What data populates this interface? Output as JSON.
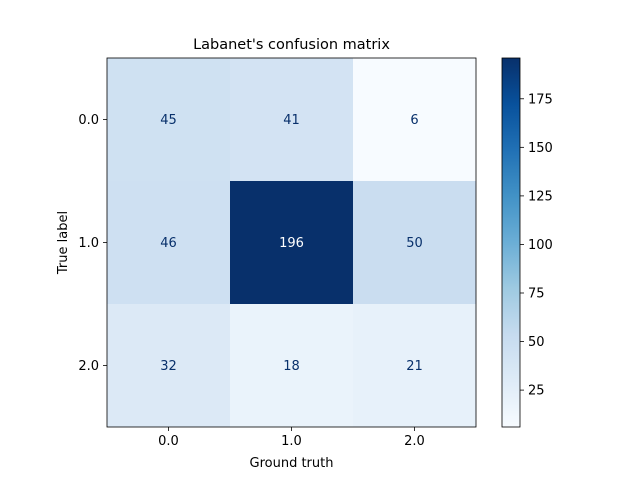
{
  "chart_data": {
    "type": "heatmap",
    "title": "Labanet's confusion matrix",
    "xlabel": "Ground truth",
    "ylabel": "True label",
    "x_categories": [
      "0.0",
      "1.0",
      "2.0"
    ],
    "y_categories": [
      "0.0",
      "1.0",
      "2.0"
    ],
    "values": [
      [
        45,
        41,
        6
      ],
      [
        46,
        196,
        50
      ],
      [
        32,
        18,
        21
      ]
    ],
    "colormap": "Blues",
    "colorbar": {
      "range": [
        6,
        196
      ],
      "ticks": [
        25,
        50,
        75,
        100,
        125,
        150,
        175
      ],
      "tick_labels": [
        "25",
        "50",
        "75",
        "100",
        "125",
        "150",
        "175"
      ]
    },
    "grid": false
  }
}
